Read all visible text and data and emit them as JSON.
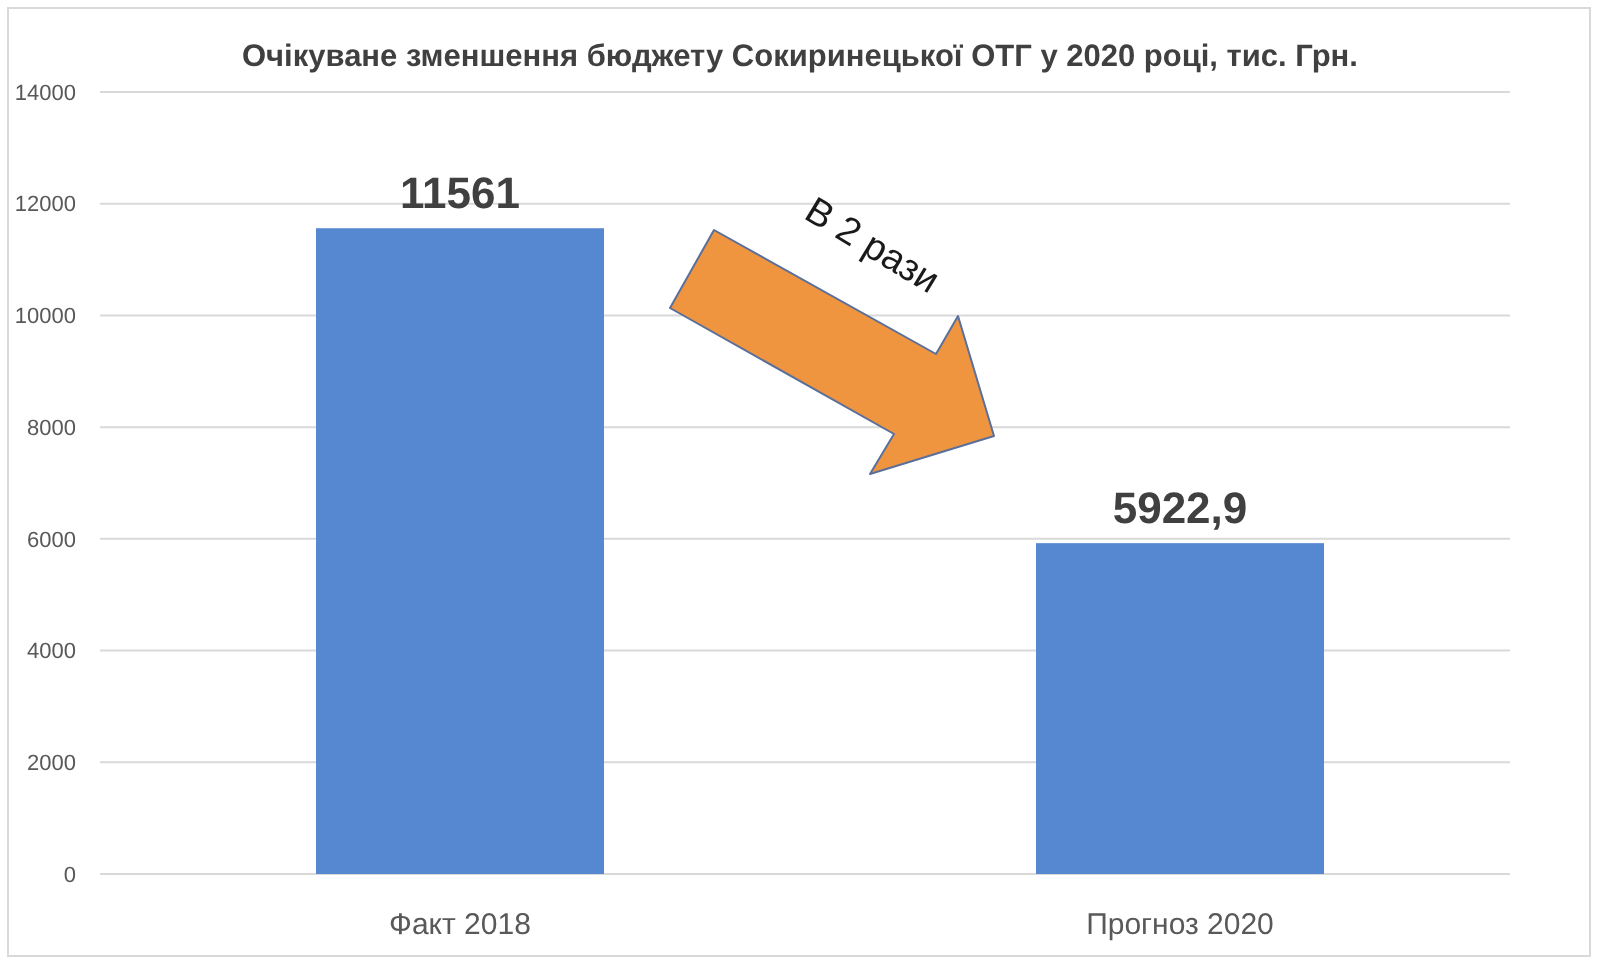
{
  "chart_data": {
    "type": "bar",
    "title": "Очікуване зменшення бюджету Сокиринецької ОТГ у 2020 році, тис. Грн.",
    "categories": [
      "Факт 2018",
      "Прогноз 2020"
    ],
    "values": [
      11561,
      5922.9
    ],
    "value_labels": [
      "11561",
      "5922,9"
    ],
    "color": "#5687d1",
    "ylim": [
      0,
      14000
    ],
    "yticks": [
      0,
      2000,
      4000,
      6000,
      8000,
      10000,
      12000,
      14000
    ],
    "grid": "y",
    "annotations": [
      "В 2 рази"
    ]
  }
}
